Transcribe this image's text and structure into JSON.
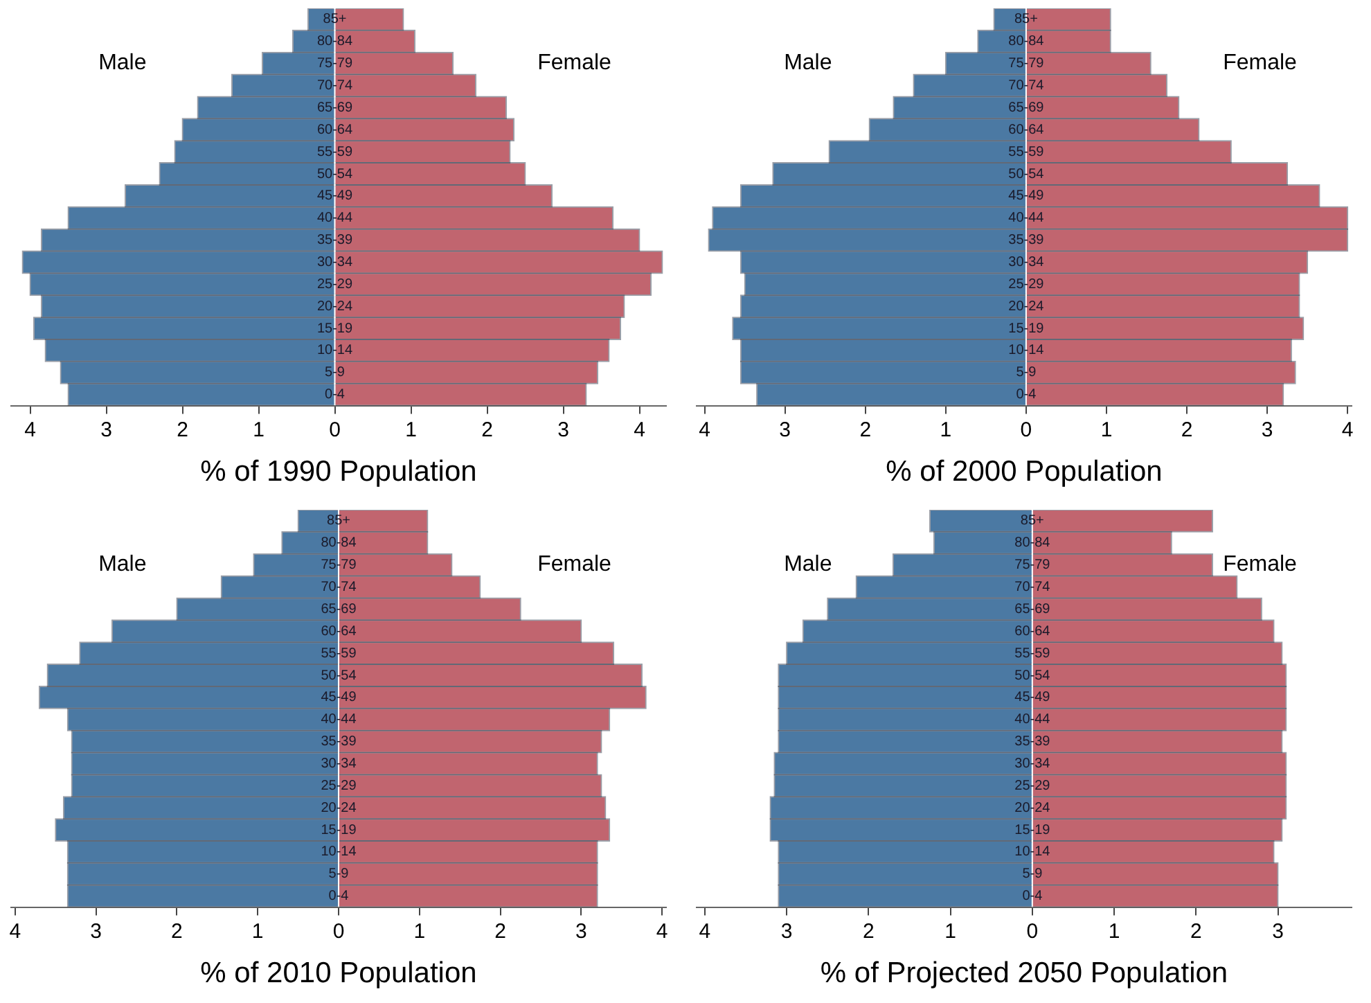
{
  "chart_data": [
    {
      "type": "bar",
      "orientation": "horizontal",
      "stacked": true,
      "xlabel": "% of 1990 Population",
      "categories": [
        "85+",
        "80-84",
        "75-79",
        "70-74",
        "65-69",
        "60-64",
        "55-59",
        "50-54",
        "45-49",
        "40-44",
        "35-39",
        "30-34",
        "25-29",
        "20-24",
        "15-19",
        "10-14",
        "5-9",
        "0-4"
      ],
      "series": [
        {
          "name": "Male",
          "color": "#4b79a3",
          "values": [
            -0.35,
            -0.55,
            -0.95,
            -1.35,
            -1.8,
            -2.0,
            -2.1,
            -2.3,
            -2.75,
            -3.5,
            -3.85,
            -4.1,
            -4.0,
            -3.85,
            -3.95,
            -3.8,
            -3.6,
            -3.5
          ]
        },
        {
          "name": "Female",
          "color": "#c1656f",
          "values": [
            0.9,
            1.05,
            1.55,
            1.85,
            2.25,
            2.35,
            2.3,
            2.5,
            2.85,
            3.65,
            4.0,
            4.3,
            4.15,
            3.8,
            3.75,
            3.6,
            3.45,
            3.3
          ]
        }
      ],
      "xlim": [
        -4.25,
        4.35
      ],
      "xticks": [
        {
          "value": -4,
          "label": "4"
        },
        {
          "value": -3,
          "label": "3"
        },
        {
          "value": -2,
          "label": "2"
        },
        {
          "value": -1,
          "label": "1"
        },
        0,
        1,
        2,
        3,
        4
      ],
      "grid": false,
      "legend": false
    },
    {
      "type": "bar",
      "orientation": "horizontal",
      "stacked": true,
      "xlabel": "% of 2000 Population",
      "categories": [
        "85+",
        "80-84",
        "75-79",
        "70-74",
        "65-69",
        "60-64",
        "55-59",
        "50-54",
        "45-49",
        "40-44",
        "35-39",
        "30-34",
        "25-29",
        "20-24",
        "15-19",
        "10-14",
        "5-9",
        "0-4"
      ],
      "series": [
        {
          "name": "Male",
          "color": "#4b79a3",
          "values": [
            -0.4,
            -0.6,
            -1.0,
            -1.4,
            -1.65,
            -1.95,
            -2.45,
            -3.15,
            -3.55,
            -3.9,
            -3.95,
            -3.55,
            -3.5,
            -3.55,
            -3.65,
            -3.55,
            -3.55,
            -3.35
          ]
        },
        {
          "name": "Female",
          "color": "#c1656f",
          "values": [
            1.05,
            1.05,
            1.55,
            1.75,
            1.9,
            2.15,
            2.55,
            3.25,
            3.65,
            4.0,
            4.0,
            3.5,
            3.4,
            3.4,
            3.45,
            3.3,
            3.35,
            3.2
          ]
        }
      ],
      "xlim": [
        -4.1,
        4.05
      ],
      "xticks": [
        {
          "value": -4,
          "label": "4"
        },
        {
          "value": -3,
          "label": "3"
        },
        {
          "value": -2,
          "label": "2"
        },
        {
          "value": -1,
          "label": "1"
        },
        0,
        1,
        2,
        3,
        4
      ],
      "grid": false,
      "legend": false
    },
    {
      "type": "bar",
      "orientation": "horizontal",
      "stacked": true,
      "xlabel": "% of 2010 Population",
      "categories": [
        "85+",
        "80-84",
        "75-79",
        "70-74",
        "65-69",
        "60-64",
        "55-59",
        "50-54",
        "45-49",
        "40-44",
        "35-39",
        "30-34",
        "25-29",
        "20-24",
        "15-19",
        "10-14",
        "5-9",
        "0-4"
      ],
      "series": [
        {
          "name": "Male",
          "color": "#4b79a3",
          "values": [
            -0.5,
            -0.7,
            -1.05,
            -1.45,
            -2.0,
            -2.8,
            -3.2,
            -3.6,
            -3.7,
            -3.35,
            -3.3,
            -3.3,
            -3.3,
            -3.4,
            -3.5,
            -3.35,
            -3.35,
            -3.35
          ]
        },
        {
          "name": "Female",
          "color": "#c1656f",
          "values": [
            1.1,
            1.1,
            1.4,
            1.75,
            2.25,
            3.0,
            3.4,
            3.75,
            3.8,
            3.35,
            3.25,
            3.2,
            3.25,
            3.3,
            3.35,
            3.2,
            3.2,
            3.2
          ]
        }
      ],
      "xlim": [
        -4.05,
        4.05
      ],
      "xticks": [
        {
          "value": -4,
          "label": "4"
        },
        {
          "value": -3,
          "label": "3"
        },
        {
          "value": -2,
          "label": "2"
        },
        {
          "value": -1,
          "label": "1"
        },
        0,
        1,
        2,
        3,
        4
      ],
      "grid": false,
      "legend": false
    },
    {
      "type": "bar",
      "orientation": "horizontal",
      "stacked": true,
      "xlabel": "% of Projected 2050 Population",
      "categories": [
        "85+",
        "80-84",
        "75-79",
        "70-74",
        "65-69",
        "60-64",
        "55-59",
        "50-54",
        "45-49",
        "40-44",
        "35-39",
        "30-34",
        "25-29",
        "20-24",
        "15-19",
        "10-14",
        "5-9",
        "0-4"
      ],
      "series": [
        {
          "name": "Male",
          "color": "#4b79a3",
          "values": [
            -1.25,
            -1.2,
            -1.7,
            -2.15,
            -2.5,
            -2.8,
            -3.0,
            -3.1,
            -3.1,
            -3.1,
            -3.1,
            -3.15,
            -3.15,
            -3.2,
            -3.2,
            -3.1,
            -3.1,
            -3.1
          ]
        },
        {
          "name": "Female",
          "color": "#c1656f",
          "values": [
            2.2,
            1.7,
            2.2,
            2.5,
            2.8,
            2.95,
            3.05,
            3.1,
            3.1,
            3.1,
            3.05,
            3.1,
            3.1,
            3.1,
            3.05,
            2.95,
            3.0,
            3.0
          ]
        }
      ],
      "xlim": [
        -4.1,
        3.9
      ],
      "xticks": [
        {
          "value": -4,
          "label": "4"
        },
        {
          "value": -3,
          "label": "3"
        },
        {
          "value": -2,
          "label": "2"
        },
        {
          "value": -1,
          "label": "1"
        },
        0,
        1,
        2,
        3
      ],
      "grid": false,
      "legend": false
    }
  ]
}
